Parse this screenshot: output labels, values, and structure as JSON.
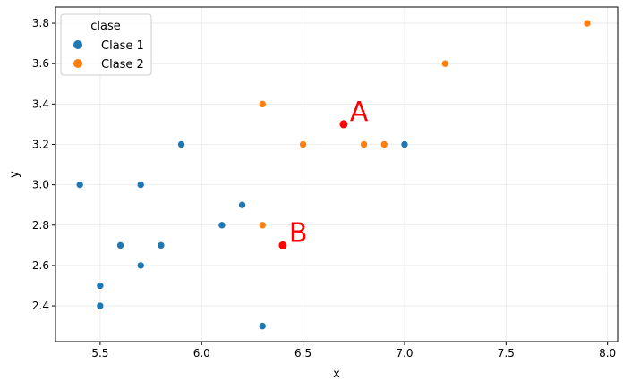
{
  "chart_data": {
    "type": "scatter",
    "title": "",
    "xlabel": "x",
    "ylabel": "y",
    "xlim": [
      5.28,
      8.05
    ],
    "ylim": [
      2.223,
      3.88
    ],
    "xticks": [
      5.5,
      6.0,
      6.5,
      7.0,
      7.5,
      8.0
    ],
    "xtick_labels": [
      "5.5",
      "6.0",
      "6.5",
      "7.0",
      "7.5",
      "8.0"
    ],
    "yticks": [
      2.4,
      2.6,
      2.8,
      3.0,
      3.2,
      3.4,
      3.6,
      3.8
    ],
    "ytick_labels": [
      "2.4",
      "2.6",
      "2.8",
      "3.0",
      "3.2",
      "3.4",
      "3.6",
      "3.8"
    ],
    "grid": true,
    "legend": {
      "title": "clase",
      "placement": "top-left"
    },
    "series": [
      {
        "name": "Clase 1",
        "color": "#1f77b4",
        "points": [
          [
            5.4,
            3.0
          ],
          [
            5.5,
            2.5
          ],
          [
            5.5,
            2.4
          ],
          [
            5.6,
            2.7
          ],
          [
            5.7,
            3.0
          ],
          [
            5.7,
            2.6
          ],
          [
            5.8,
            2.7
          ],
          [
            5.9,
            3.2
          ],
          [
            6.1,
            2.8
          ],
          [
            6.2,
            2.9
          ],
          [
            6.3,
            2.3
          ],
          [
            7.0,
            3.2
          ]
        ]
      },
      {
        "name": "Clase 2",
        "color": "#ff7f0e",
        "points": [
          [
            6.3,
            3.4
          ],
          [
            6.3,
            2.8
          ],
          [
            6.5,
            3.2
          ],
          [
            6.8,
            3.2
          ],
          [
            6.9,
            3.2
          ],
          [
            7.2,
            3.6
          ],
          [
            7.9,
            3.8
          ]
        ]
      }
    ],
    "annotations": [
      {
        "label": "A",
        "x": 6.7,
        "y": 3.3,
        "color": "#ff0000"
      },
      {
        "label": "B",
        "x": 6.4,
        "y": 2.7,
        "color": "#ff0000"
      }
    ]
  }
}
